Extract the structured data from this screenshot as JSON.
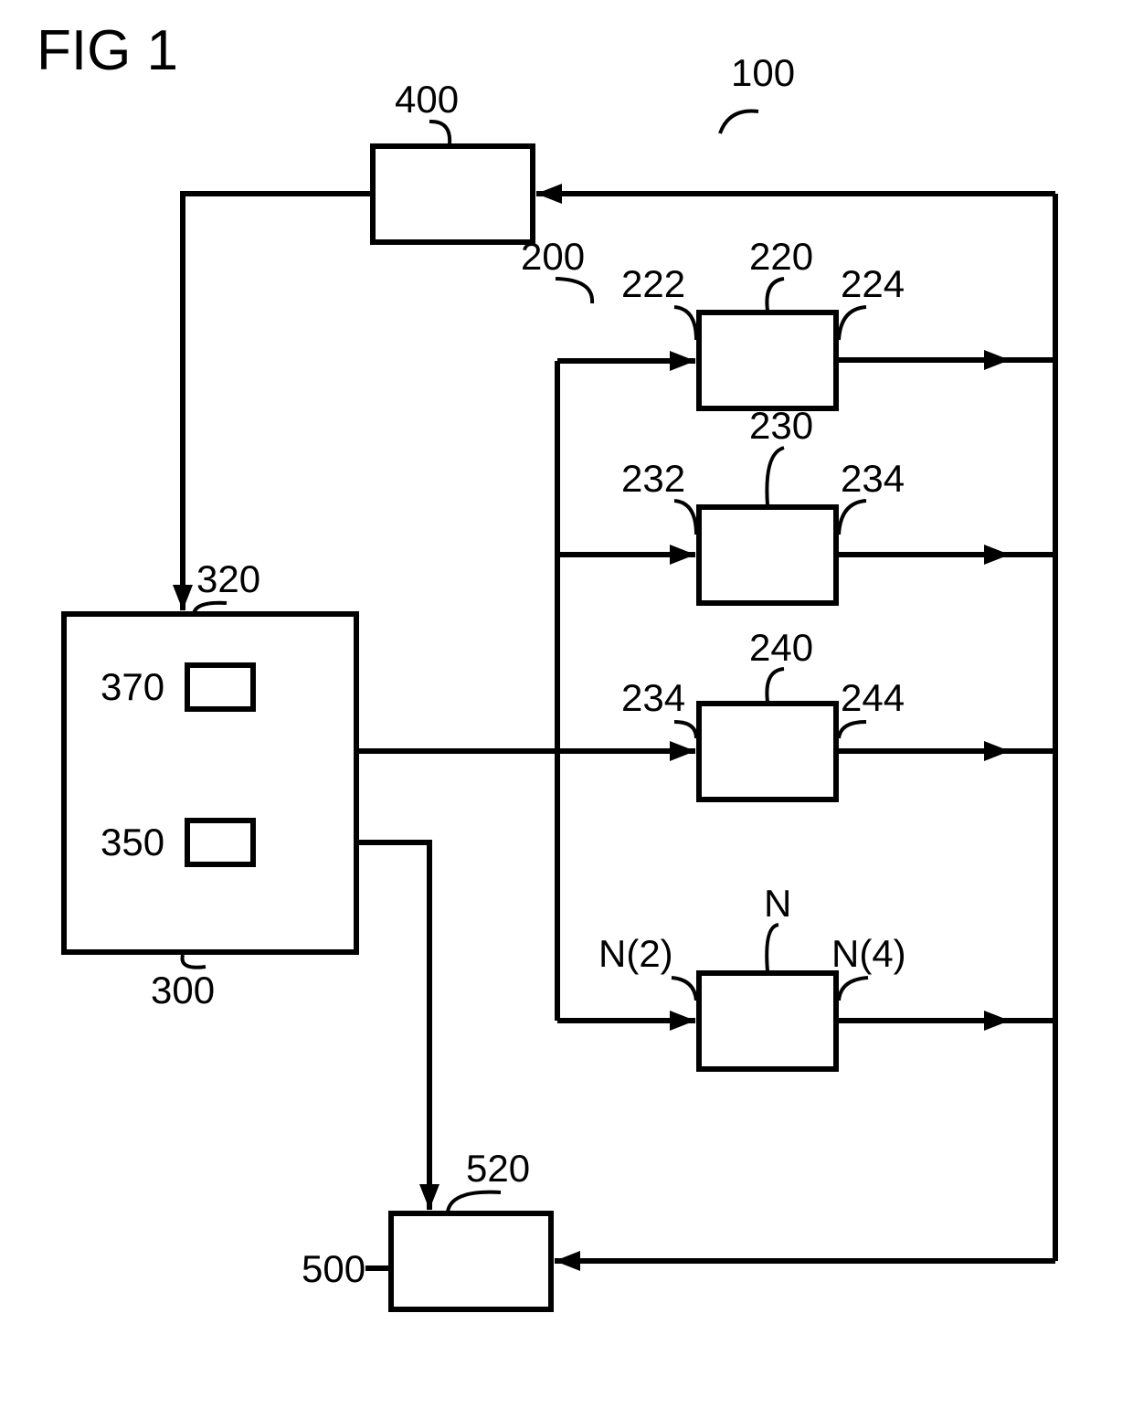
{
  "figure": {
    "title": "FIG 1",
    "title_fontsize": 62,
    "title_fontweight": "400",
    "label_fontsize": 42,
    "label_fontweight": "400",
    "background_color": "#ffffff",
    "stroke_color": "#000000",
    "stroke_width": 6,
    "arrow_head_len": 28,
    "arrow_head_w": 11,
    "labels": {
      "ref100": "100",
      "ref200": "200",
      "ref220": "220",
      "ref222": "222",
      "ref224": "224",
      "ref230": "230",
      "ref232": "232",
      "ref234": "234",
      "ref234b": "234",
      "ref240": "240",
      "ref244": "244",
      "refN": "N",
      "refN2": "N(2)",
      "refN4": "N(4)",
      "ref300": "300",
      "ref320": "320",
      "ref350": "350",
      "ref370": "370",
      "ref400": "400",
      "ref500": "500",
      "ref520": "520"
    }
  }
}
